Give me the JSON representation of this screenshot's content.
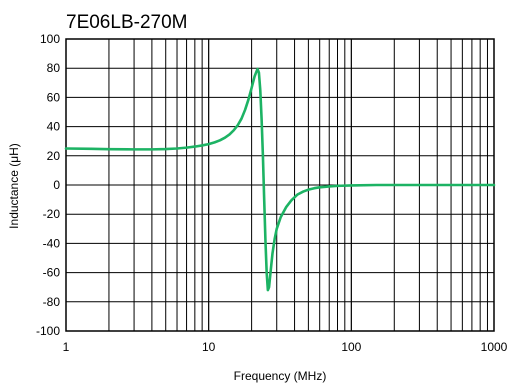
{
  "chart_data": {
    "type": "line",
    "title": "7E06LB-270M",
    "xlabel": "Frequency (MHz)",
    "ylabel": "Inductance (μH)",
    "x_scale": "log",
    "xlim": [
      1,
      1000
    ],
    "ylim": [
      -100,
      100
    ],
    "grid": true,
    "x_tick_labels": [
      "1",
      "10",
      "100",
      "1000"
    ],
    "y_tick_labels": [
      "100",
      "80",
      "60",
      "40",
      "20",
      "0",
      "-20",
      "-40",
      "-60",
      "-80",
      "-100"
    ],
    "series_color": "#1db364",
    "series": [
      {
        "x": [
          1,
          1.5,
          2,
          3,
          4,
          5,
          6,
          7,
          8,
          9,
          10,
          11,
          12,
          13,
          14,
          15,
          16,
          17,
          18,
          19,
          20,
          21,
          22,
          22.5,
          23,
          23.5,
          24,
          24.5,
          25,
          25.5,
          26,
          26.5,
          27,
          28,
          29,
          30,
          32,
          35,
          38,
          42,
          46,
          50,
          55,
          60,
          70,
          80,
          100,
          150,
          200,
          300,
          500,
          700,
          1000
        ],
        "y": [
          25,
          24.8,
          24.5,
          24.4,
          24.4,
          24.6,
          25,
          25.6,
          26.3,
          27.1,
          28,
          29.2,
          30.6,
          32.4,
          34.6,
          37.5,
          41,
          45.5,
          51.5,
          58.5,
          66.5,
          74.5,
          79.5,
          77,
          65,
          45,
          20,
          -10,
          -38,
          -60,
          -72,
          -70,
          -62,
          -47,
          -37,
          -30,
          -22,
          -15,
          -10.5,
          -6.5,
          -4.5,
          -3.2,
          -2.2,
          -1.6,
          -1,
          -0.6,
          -0.3,
          0,
          0,
          0,
          0,
          0,
          0
        ]
      }
    ]
  }
}
